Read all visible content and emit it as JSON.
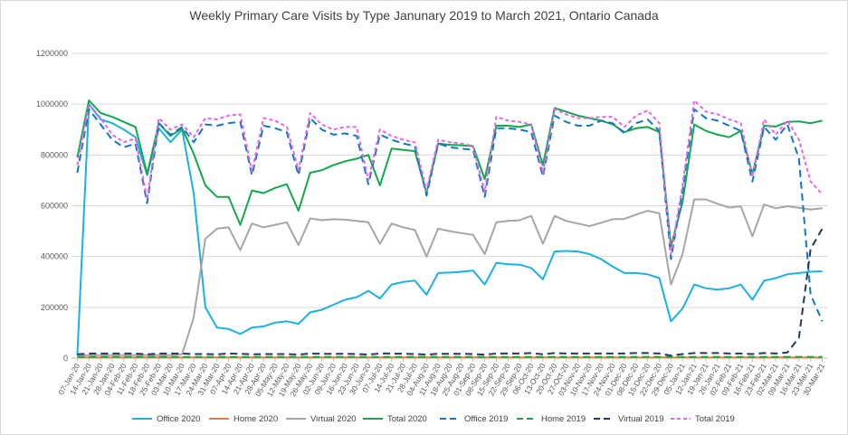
{
  "chart_data": {
    "type": "line",
    "title": "Weekly Primary Care Visits by Type Janunary 2019 to March 2021, Ontario Canada",
    "xlabel": "",
    "ylabel": "",
    "ylim": [
      0,
      1200000
    ],
    "yticks": [
      "0",
      "200000",
      "400000",
      "600000",
      "800000",
      "1000000",
      "1200000"
    ],
    "grid": true,
    "legend_position": "bottom",
    "categories": [
      "07-Jan-20",
      "14-Jan-20",
      "21-Jan-20",
      "28-Jan-20",
      "04-Feb-20",
      "11-Feb-20",
      "18-Feb-20",
      "25-Feb-20",
      "03-Mar-20",
      "10-Mar-20",
      "17-Mar-20",
      "24-Mar-20",
      "31-Mar-20",
      "07-Apr-20",
      "14-Apr-20",
      "21-Apr-20",
      "28-Apr-20",
      "05-May-20",
      "12-May-20",
      "19-May-20",
      "26-May-20",
      "02-Jun-20",
      "09-Jun-20",
      "16-Jun-20",
      "23-Jun-20",
      "30-Jun-20",
      "07-Jul-20",
      "14-Jul-20",
      "21-Jul-20",
      "28-Jul-20",
      "04-Aug-20",
      "11-Aug-20",
      "18-Aug-20",
      "25-Aug-20",
      "01-Sep-20",
      "08-Sep-20",
      "15-Sep-20",
      "22-Sep-20",
      "29-Sep-20",
      "06-Oct-20",
      "13-Oct-20",
      "20-Oct-20",
      "27-Oct-20",
      "03-Nov-20",
      "10-Nov-20",
      "17-Nov-20",
      "24-Nov-20",
      "01-Dec-20",
      "08-Dec-20",
      "15-Dec-20",
      "22-Dec-20",
      "29-Dec-20",
      "05-Jan-21",
      "12-Jan-21",
      "19-Jan-21",
      "26-Jan-21",
      "02-Feb-21",
      "09-Feb-21",
      "16-Feb-21",
      "23-Feb-21",
      "02-Mar-21",
      "09-Mar-21",
      "16-Mar-21",
      "23-Mar-21",
      "30-Mar-21"
    ],
    "series": [
      {
        "name": "Office 2020",
        "color": "#1ab0e8",
        "dash": "solid",
        "values": [
          10000,
          1000000,
          940000,
          925000,
          900000,
          870000,
          720000,
          905000,
          850000,
          900000,
          650000,
          200000,
          120000,
          115000,
          95000,
          120000,
          125000,
          140000,
          145000,
          135000,
          180000,
          190000,
          210000,
          230000,
          240000,
          265000,
          235000,
          290000,
          300000,
          305000,
          250000,
          335000,
          337000,
          340000,
          345000,
          290000,
          375000,
          370000,
          368000,
          355000,
          310000,
          420000,
          422000,
          420000,
          410000,
          390000,
          360000,
          335000,
          335000,
          330000,
          315000,
          145000,
          195000,
          290000,
          275000,
          270000,
          275000,
          290000,
          230000,
          305000,
          315000,
          330000,
          335000,
          340000,
          342000
        ]
      },
      {
        "name": "Home 2020",
        "color": "#ed7d31",
        "dash": "solid",
        "values": [
          3000,
          3000,
          3000,
          3000,
          3000,
          3000,
          3000,
          3000,
          3000,
          3000,
          3000,
          3000,
          3000,
          3000,
          3000,
          3000,
          3000,
          3000,
          3000,
          3000,
          3000,
          3000,
          3000,
          3000,
          3000,
          3000,
          3000,
          3000,
          3000,
          3000,
          3000,
          3000,
          3000,
          3000,
          3000,
          3000,
          3000,
          3000,
          3000,
          3000,
          3000,
          3000,
          3000,
          3000,
          3000,
          3000,
          3000,
          3000,
          3000,
          3000,
          3000,
          3000,
          3000,
          3000,
          3000,
          3000,
          3000,
          3000,
          3000,
          3000,
          3000,
          3000,
          3000,
          3000,
          3000
        ]
      },
      {
        "name": "Virtual 2020",
        "color": "#a6a6a6",
        "dash": "solid",
        "values": [
          10000,
          12000,
          12000,
          12000,
          12000,
          12000,
          12000,
          12000,
          12000,
          15000,
          160000,
          470000,
          510000,
          515000,
          425000,
          530000,
          515000,
          525000,
          535000,
          445000,
          550000,
          543000,
          547000,
          545000,
          540000,
          535000,
          450000,
          530000,
          515000,
          505000,
          400000,
          510000,
          500000,
          492000,
          485000,
          410000,
          535000,
          540000,
          543000,
          560000,
          450000,
          560000,
          540000,
          530000,
          520000,
          533000,
          547000,
          548000,
          565000,
          580000,
          570000,
          290000,
          410000,
          625000,
          625000,
          608000,
          593000,
          598000,
          480000,
          605000,
          590000,
          598000,
          592000,
          585000,
          590000
        ]
      },
      {
        "name": "Total 2020",
        "color": "#13a84b",
        "dash": "solid",
        "values": [
          790000,
          1015000,
          965000,
          950000,
          930000,
          910000,
          725000,
          925000,
          875000,
          905000,
          805000,
          680000,
          635000,
          635000,
          525000,
          660000,
          650000,
          670000,
          685000,
          580000,
          730000,
          740000,
          760000,
          775000,
          785000,
          800000,
          680000,
          825000,
          820000,
          815000,
          650000,
          845000,
          840000,
          838000,
          835000,
          705000,
          915000,
          915000,
          910000,
          920000,
          760000,
          985000,
          970000,
          955000,
          945000,
          935000,
          920000,
          890000,
          905000,
          910000,
          890000,
          440000,
          615000,
          920000,
          895000,
          880000,
          870000,
          895000,
          725000,
          915000,
          912000,
          930000,
          932000,
          925000,
          935000
        ]
      },
      {
        "name": "Office 2019",
        "color": "#1177c9",
        "dash": "long",
        "values": [
          730000,
          980000,
          920000,
          860000,
          830000,
          845000,
          610000,
          925000,
          880000,
          910000,
          850000,
          920000,
          915000,
          925000,
          930000,
          720000,
          915000,
          905000,
          890000,
          720000,
          945000,
          900000,
          880000,
          885000,
          875000,
          685000,
          880000,
          860000,
          845000,
          835000,
          640000,
          845000,
          830000,
          825000,
          820000,
          635000,
          905000,
          905000,
          900000,
          890000,
          715000,
          955000,
          930000,
          915000,
          915000,
          935000,
          925000,
          885000,
          925000,
          940000,
          895000,
          390000,
          660000,
          980000,
          945000,
          935000,
          915000,
          895000,
          695000,
          910000,
          860000,
          920000,
          785000,
          250000,
          145000
        ]
      },
      {
        "name": "Home 2019",
        "color": "#13a84b",
        "dash": "long",
        "values": [
          5000,
          5000,
          5000,
          5000,
          5000,
          5000,
          5000,
          5000,
          5000,
          5000,
          5000,
          5000,
          5000,
          5000,
          5000,
          5000,
          5000,
          5000,
          5000,
          5000,
          5000,
          5000,
          5000,
          5000,
          5000,
          5000,
          5000,
          5000,
          5000,
          5000,
          5000,
          5000,
          5000,
          5000,
          5000,
          5000,
          5000,
          5000,
          5000,
          5000,
          5000,
          5000,
          5000,
          5000,
          5000,
          5000,
          5000,
          5000,
          5000,
          5000,
          5000,
          5000,
          5000,
          5000,
          5000,
          5000,
          5000,
          5000,
          5000,
          5000,
          5000,
          5000,
          5000,
          5000,
          5000
        ]
      },
      {
        "name": "Virtual 2019",
        "color": "#1f3864",
        "dash": "long",
        "values": [
          15000,
          18000,
          18000,
          18000,
          18000,
          18000,
          15000,
          18000,
          18000,
          18000,
          16000,
          16000,
          15000,
          18000,
          17000,
          15000,
          16000,
          16000,
          16000,
          14000,
          18000,
          17000,
          17000,
          17000,
          16000,
          14000,
          18000,
          18000,
          17000,
          16000,
          14000,
          17000,
          17000,
          17000,
          16000,
          14000,
          18000,
          18000,
          18000,
          20000,
          15000,
          20000,
          18000,
          18000,
          18000,
          18000,
          18000,
          18000,
          20000,
          20000,
          18000,
          10000,
          16000,
          20000,
          20000,
          20000,
          18000,
          18000,
          16000,
          20000,
          18000,
          22000,
          80000,
          430000,
          510000
        ]
      },
      {
        "name": "Total 2019",
        "color": "#e963e6",
        "dash": "short",
        "values": [
          760000,
          1000000,
          945000,
          880000,
          850000,
          865000,
          625000,
          945000,
          900000,
          920000,
          870000,
          945000,
          940000,
          955000,
          960000,
          735000,
          945000,
          935000,
          910000,
          740000,
          965000,
          920000,
          900000,
          910000,
          910000,
          700000,
          900000,
          875000,
          860000,
          850000,
          660000,
          860000,
          850000,
          845000,
          835000,
          655000,
          950000,
          935000,
          930000,
          920000,
          730000,
          980000,
          960000,
          945000,
          945000,
          950000,
          950000,
          910000,
          955000,
          975000,
          925000,
          410000,
          680000,
          1015000,
          970000,
          960000,
          940000,
          925000,
          715000,
          940000,
          880000,
          935000,
          860000,
          695000,
          645000
        ]
      }
    ]
  }
}
